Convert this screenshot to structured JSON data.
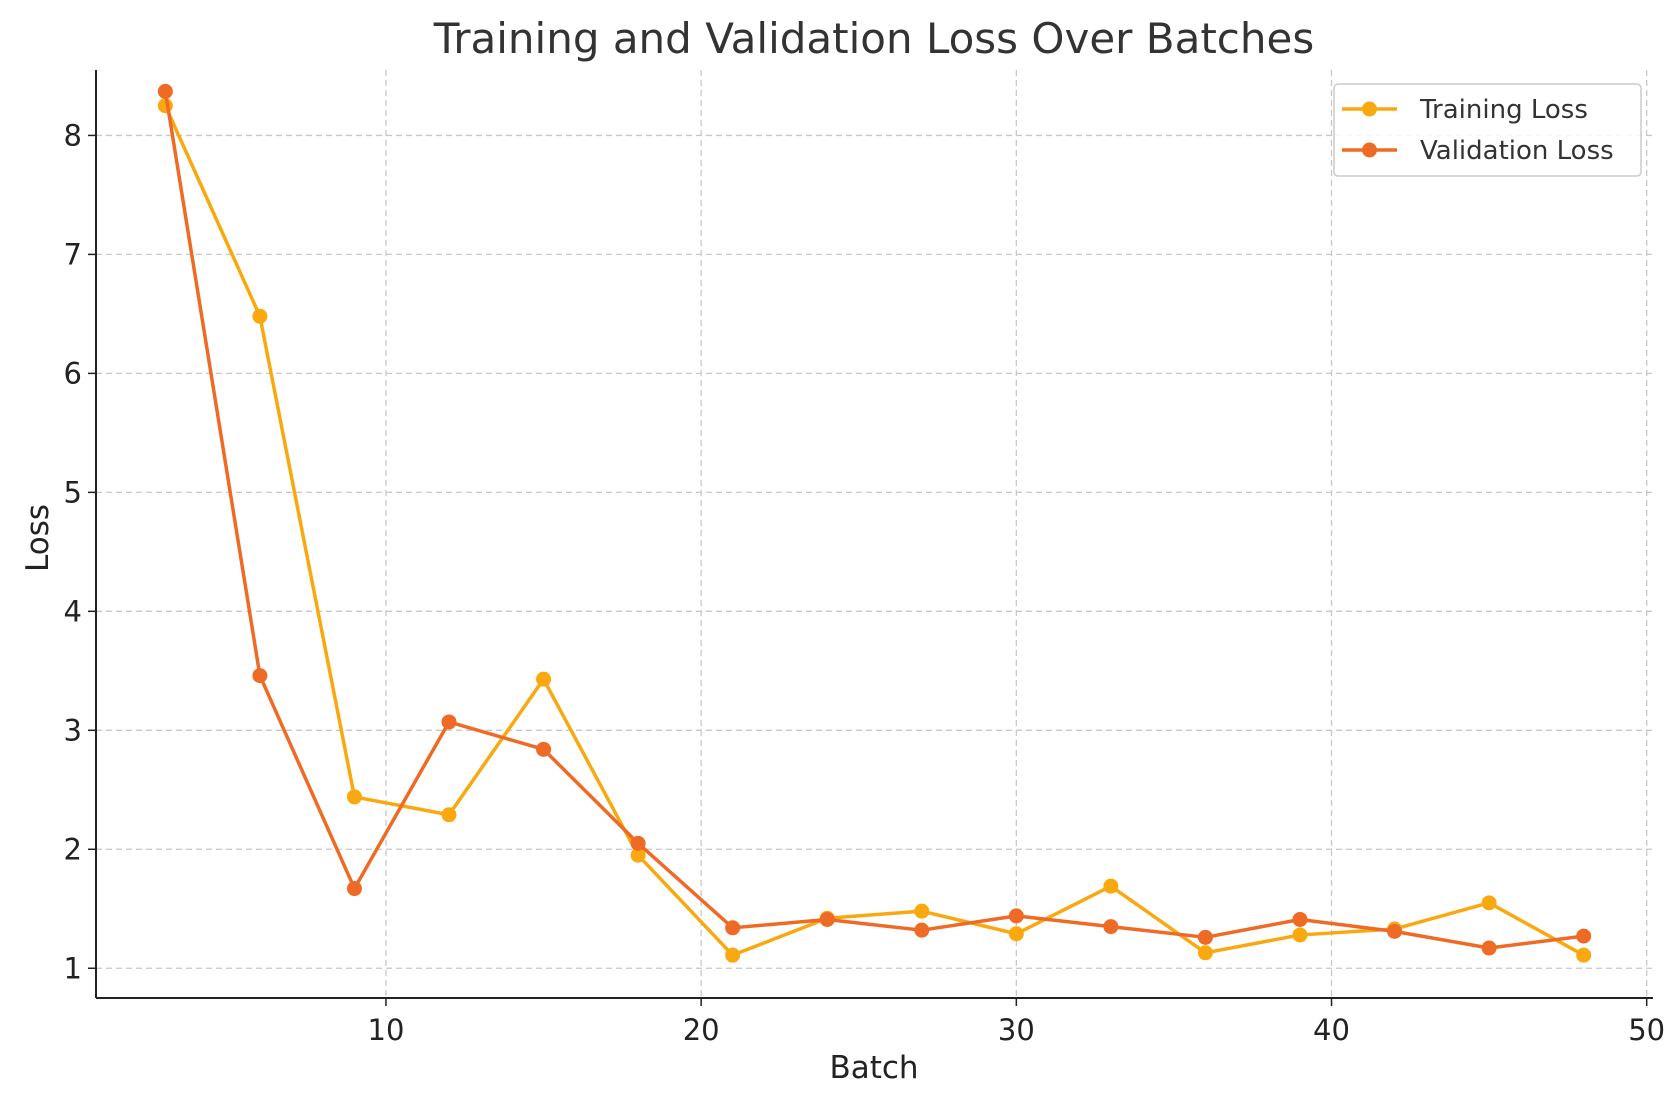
{
  "chart_data": {
    "type": "line",
    "title": "Training and Validation Loss Over Batches",
    "xlabel": "Batch",
    "ylabel": "Loss",
    "xlim": [
      0.8,
      50.2
    ],
    "ylim": [
      0.75,
      8.55
    ],
    "xticks": [
      10,
      20,
      30,
      40,
      50
    ],
    "yticks": [
      1,
      2,
      3,
      4,
      5,
      6,
      7,
      8
    ],
    "grid": true,
    "legend_position": "top-right",
    "x": [
      3,
      6,
      9,
      12,
      15,
      18,
      21,
      24,
      27,
      30,
      33,
      36,
      39,
      42,
      45,
      48
    ],
    "series": [
      {
        "name": "Training Loss",
        "color": "#F9A90F",
        "values": [
          8.25,
          6.48,
          2.44,
          2.29,
          3.43,
          1.95,
          1.11,
          1.42,
          1.48,
          1.29,
          1.69,
          1.13,
          1.28,
          1.33,
          1.55,
          1.11
        ]
      },
      {
        "name": "Validation Loss",
        "color": "#EF6A25",
        "values": [
          8.37,
          3.46,
          1.67,
          3.07,
          2.84,
          2.05,
          1.34,
          1.41,
          1.32,
          1.44,
          1.35,
          1.26,
          1.41,
          1.31,
          1.17,
          1.27
        ]
      }
    ]
  }
}
